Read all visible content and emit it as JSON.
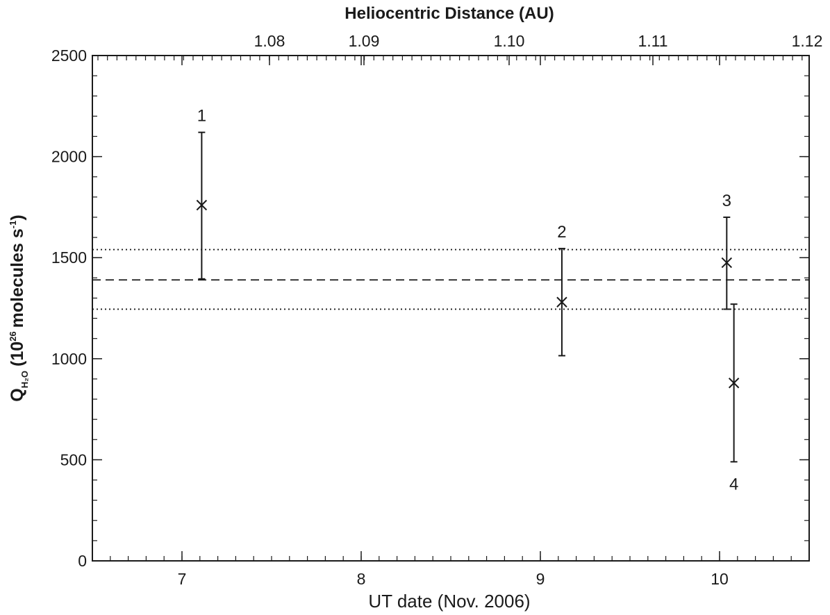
{
  "chart_data": {
    "type": "scatter",
    "top_axis_title": "Heliocentric Distance (AU)",
    "top_ticks": [
      "1.08",
      "1.09",
      "1.10",
      "1.11",
      "1.12"
    ],
    "xlabel": "UT date (Nov. 2006)",
    "ylabel_main": "Q",
    "ylabel_sub": "H₂O",
    "ylabel_rest": "(10",
    "ylabel_exp": "26",
    "ylabel_units": "molecules s",
    "ylabel_units_exp": "-1",
    "ylabel_close": ")",
    "xlim": [
      6.5,
      10.5
    ],
    "ylim": [
      0,
      2500
    ],
    "x_ticks": [
      7,
      8,
      9,
      10
    ],
    "y_ticks": [
      0,
      500,
      1000,
      1500,
      2000,
      2500
    ],
    "points": [
      {
        "label": "1",
        "x": 7.11,
        "y": 1760,
        "err_low": 1395,
        "err_high": 2120,
        "label_pos": "above"
      },
      {
        "label": "2",
        "x": 9.12,
        "y": 1280,
        "err_low": 1015,
        "err_high": 1545,
        "label_pos": "above"
      },
      {
        "label": "3",
        "x": 10.04,
        "y": 1475,
        "err_low": 1245,
        "err_high": 1700,
        "label_pos": "above"
      },
      {
        "label": "4",
        "x": 10.08,
        "y": 880,
        "err_low": 490,
        "err_high": 1270,
        "label_pos": "below"
      }
    ],
    "mean_line": 1390,
    "mean_band": [
      1245,
      1540
    ],
    "grid": false
  }
}
